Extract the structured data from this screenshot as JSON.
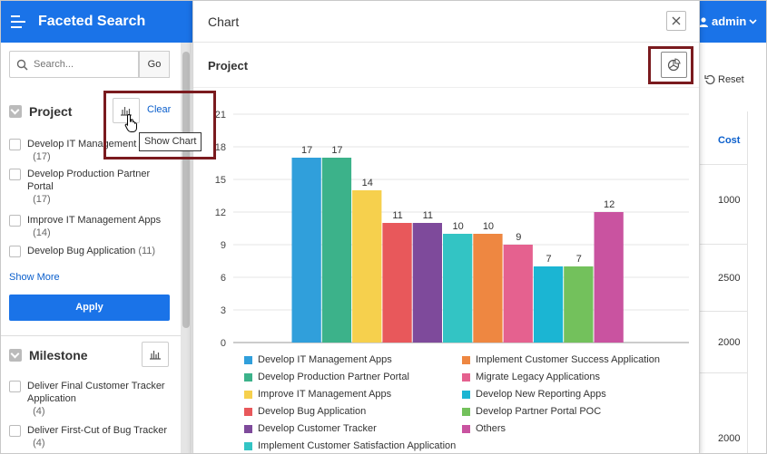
{
  "header": {
    "title": "Faceted Search",
    "user": "admin"
  },
  "search": {
    "placeholder": "Search...",
    "go_label": "Go"
  },
  "facets": {
    "project": {
      "title": "Project",
      "clear_label": "Clear",
      "options": [
        {
          "label": "Develop IT Management Apps",
          "count": "(17)"
        },
        {
          "label": "Develop Production Partner Portal",
          "count": "(17)"
        },
        {
          "label": "Improve IT Management Apps",
          "count": "(14)"
        },
        {
          "label": "Develop Bug Application",
          "count": "(11)"
        }
      ],
      "show_more": "Show More",
      "apply": "Apply"
    },
    "milestone": {
      "title": "Milestone",
      "options": [
        {
          "label": "Deliver Final Customer Tracker Application",
          "count": "(4)"
        },
        {
          "label": "Deliver First-Cut of Bug Tracker",
          "count": "(4)"
        }
      ]
    }
  },
  "tooltip": "Show Chart",
  "report": {
    "reset_label": "Reset",
    "cost_header": "Cost",
    "cost_values": [
      "1000",
      "2500",
      "2000",
      "2000"
    ]
  },
  "modal": {
    "title": "Chart",
    "region_title": "Project"
  },
  "chart_data": {
    "type": "bar",
    "title": "Project",
    "categories": [
      "Develop IT Management Apps",
      "Develop Production Partner Portal",
      "Improve IT Management Apps",
      "Develop Bug Application",
      "Develop Customer Tracker",
      "Implement Customer Satisfaction Application",
      "Implement Customer Success Application",
      "Migrate Legacy Applications",
      "Develop New Reporting Apps",
      "Develop Partner Portal POC",
      "Others"
    ],
    "values": [
      17,
      17,
      14,
      11,
      11,
      10,
      10,
      9,
      7,
      7,
      12
    ],
    "colors": [
      "#309fdb",
      "#3cb28a",
      "#f6d04d",
      "#e8585b",
      "#7e4a9b",
      "#33c4c4",
      "#ee8741",
      "#e5618f",
      "#1bb5d3",
      "#73c15c",
      "#c953a0"
    ],
    "ylim": [
      0,
      21
    ],
    "yticks": [
      0,
      3,
      6,
      9,
      12,
      15,
      18,
      21
    ],
    "grid": true,
    "legend": "bottom"
  }
}
